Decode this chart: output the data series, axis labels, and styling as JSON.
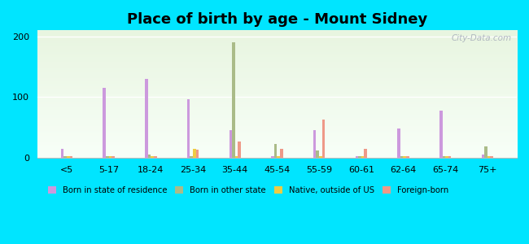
{
  "title": "Place of birth by age - Mount Sidney",
  "categories": [
    "<5",
    "5-17",
    "18-24",
    "25-34",
    "35-44",
    "45-54",
    "55-59",
    "60-61",
    "62-64",
    "65-74",
    "75+"
  ],
  "series": {
    "Born in state of residence": {
      "color": "#cc99dd",
      "values": [
        15,
        115,
        130,
        97,
        45,
        3,
        45,
        3,
        48,
        78,
        5
      ]
    },
    "Born in other state": {
      "color": "#aabb88",
      "values": [
        3,
        3,
        5,
        3,
        190,
        22,
        12,
        3,
        2,
        3,
        18
      ]
    },
    "Native, outside of US": {
      "color": "#eecc44",
      "values": [
        3,
        3,
        3,
        15,
        3,
        3,
        3,
        3,
        2,
        3,
        3
      ]
    },
    "Foreign-born": {
      "color": "#ee9988",
      "values": [
        3,
        3,
        3,
        13,
        27,
        15,
        63,
        14,
        3,
        3,
        3
      ]
    }
  },
  "ylim": [
    0,
    210
  ],
  "yticks": [
    0,
    100,
    200
  ],
  "outer_background": "#00e5ff",
  "bar_width": 0.07,
  "title_fontsize": 13,
  "watermark": "City-Data.com"
}
